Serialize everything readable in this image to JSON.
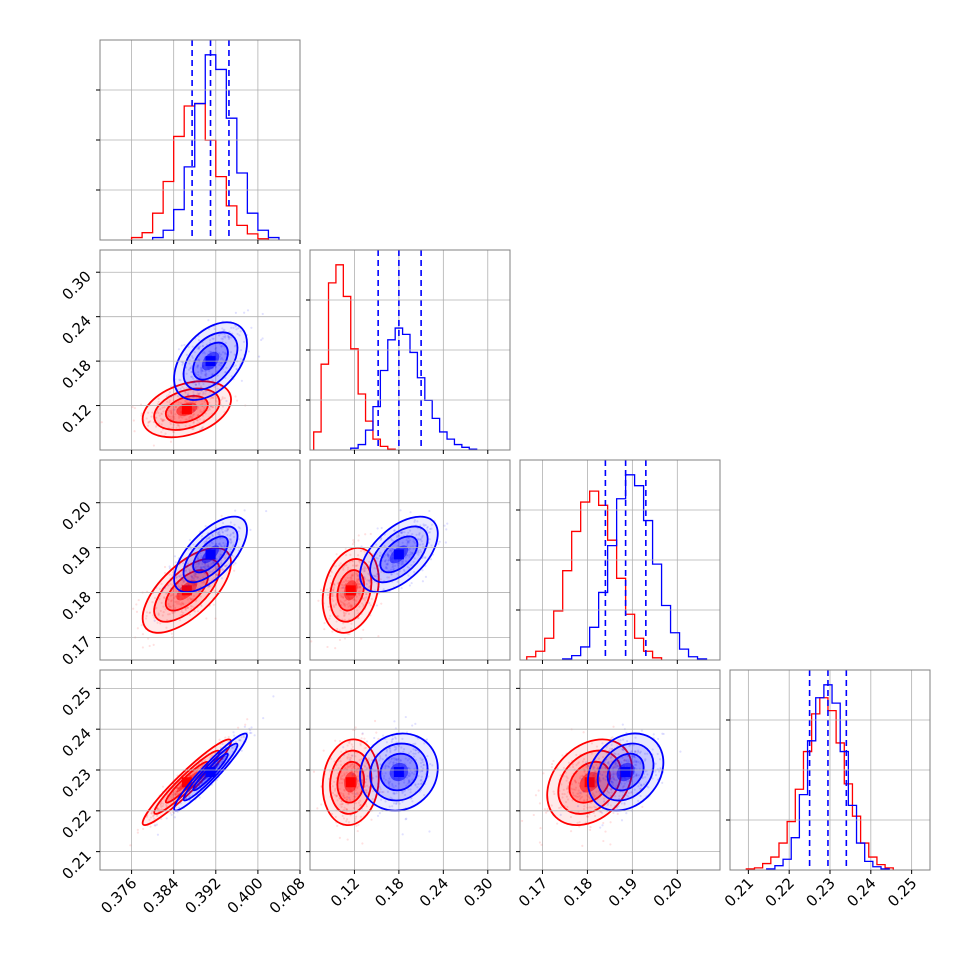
{
  "colors": {
    "red": "#ff0000",
    "blue": "#0000ff",
    "grid": "#b0b0b0",
    "frame": "#808080"
  },
  "chart_data": {
    "type": "corner",
    "grid": true,
    "parameters": [
      {
        "range": [
          0.37,
          0.408
        ],
        "ticks": [
          0.376,
          0.384,
          0.392,
          0.4,
          0.408
        ],
        "tick_labels": [
          "0.376",
          "0.384",
          "0.392",
          "0.400",
          "0.408"
        ]
      },
      {
        "range": [
          0.06,
          0.33
        ],
        "ticks": [
          0.12,
          0.18,
          0.24,
          0.3
        ],
        "tick_labels": [
          "0.12",
          "0.18",
          "0.24",
          "0.30"
        ]
      },
      {
        "range": [
          0.165,
          0.2095
        ],
        "ticks": [
          0.17,
          0.18,
          0.19,
          0.2
        ],
        "tick_labels": [
          "0.17",
          "0.18",
          "0.19",
          "0.20"
        ]
      },
      {
        "range": [
          0.2055,
          0.2545
        ],
        "ticks": [
          0.21,
          0.22,
          0.23,
          0.24,
          0.25
        ],
        "tick_labels": [
          "0.21",
          "0.22",
          "0.23",
          "0.24",
          "0.25"
        ]
      }
    ],
    "series": [
      {
        "color": "red",
        "mean": [
          0.3865,
          0.115,
          0.1805,
          0.227
        ],
        "sd": [
          0.004,
          0.018,
          0.0045,
          0.005
        ],
        "corr": [
          [
            1,
            0.35,
            0.65,
            0.95
          ],
          [
            0.35,
            1,
            0.25,
            0.1
          ],
          [
            0.65,
            0.25,
            1,
            0.3
          ],
          [
            0.95,
            0.1,
            0.3,
            1
          ]
        ],
        "histograms": [
          {
            "edges": [
              0.376,
              0.378,
              0.38,
              0.382,
              0.384,
              0.386,
              0.388,
              0.39,
              0.392,
              0.394,
              0.396,
              0.398,
              0.4,
              0.402
            ],
            "counts": [
              2,
              6,
              22,
              48,
              85,
              110,
              112,
              82,
              52,
              28,
              12,
              5,
              1
            ]
          },
          {
            "edges": [
              0.065,
              0.075,
              0.085,
              0.095,
              0.105,
              0.115,
              0.125,
              0.135,
              0.145,
              0.155,
              0.165,
              0.175
            ],
            "counts": [
              20,
              95,
              185,
              205,
              170,
              112,
              62,
              32,
              12,
              4,
              1
            ]
          },
          {
            "edges": [
              0.1665,
              0.1685,
              0.1705,
              0.1725,
              0.1745,
              0.1765,
              0.1785,
              0.1805,
              0.1825,
              0.1845,
              0.1865,
              0.1885,
              0.1905,
              0.1925,
              0.1945,
              0.1965
            ],
            "counts": [
              3,
              8,
              20,
              45,
              82,
              118,
              145,
              155,
              142,
              110,
              75,
              42,
              20,
              8,
              2
            ]
          },
          {
            "edges": [
              0.2095,
              0.2115,
              0.2135,
              0.2155,
              0.2175,
              0.2195,
              0.2215,
              0.2235,
              0.2255,
              0.2275,
              0.2295,
              0.2315,
              0.2335,
              0.2355,
              0.2375,
              0.2395,
              0.2415,
              0.2435,
              0.2455
            ],
            "counts": [
              1,
              2,
              6,
              12,
              25,
              45,
              75,
              110,
              145,
              160,
              148,
              118,
              80,
              50,
              25,
              12,
              5,
              2
            ]
          }
        ]
      },
      {
        "color": "blue",
        "mean": [
          0.391,
          0.18,
          0.1885,
          0.2295
        ],
        "sd": [
          0.0033,
          0.025,
          0.004,
          0.0045
        ],
        "corr": [
          [
            1,
            0.45,
            0.65,
            0.95
          ],
          [
            0.45,
            1,
            0.55,
            0.1
          ],
          [
            0.65,
            0.55,
            1,
            0.25
          ],
          [
            0.95,
            0.1,
            0.25,
            1
          ]
        ],
        "quantiles": [
          [
            0.3875,
            0.391,
            0.3945
          ],
          [
            0.152,
            0.18,
            0.21
          ],
          [
            0.184,
            0.1885,
            0.193
          ],
          [
            0.225,
            0.2295,
            0.234
          ]
        ],
        "histograms": [
          {
            "edges": [
              0.38,
              0.382,
              0.384,
              0.386,
              0.388,
              0.39,
              0.392,
              0.394,
              0.396,
              0.398,
              0.4,
              0.402,
              0.404
            ],
            "counts": [
              2,
              8,
              25,
              60,
              112,
              152,
              140,
              100,
              55,
              22,
              8,
              2
            ]
          },
          {
            "edges": [
              0.115,
              0.125,
              0.135,
              0.145,
              0.155,
              0.165,
              0.175,
              0.185,
              0.195,
              0.205,
              0.215,
              0.225,
              0.235,
              0.245,
              0.255,
              0.265,
              0.275,
              0.285
            ],
            "counts": [
              2,
              6,
              22,
              48,
              88,
              122,
              135,
              128,
              108,
              80,
              55,
              35,
              20,
              12,
              6,
              3,
              1
            ]
          },
          {
            "edges": [
              0.1745,
              0.1765,
              0.1785,
              0.1805,
              0.1825,
              0.1845,
              0.1865,
              0.1885,
              0.1905,
              0.1925,
              0.1945,
              0.1965,
              0.1985,
              0.2005,
              0.2025,
              0.2045,
              0.2065
            ],
            "counts": [
              1,
              4,
              12,
              30,
              62,
              105,
              148,
              170,
              160,
              128,
              88,
              50,
              25,
              10,
              3,
              1
            ]
          },
          {
            "edges": [
              0.2145,
              0.2165,
              0.2185,
              0.2205,
              0.2225,
              0.2245,
              0.2265,
              0.2285,
              0.2305,
              0.2325,
              0.2345,
              0.2365,
              0.2385,
              0.2405,
              0.2425,
              0.2445
            ],
            "counts": [
              1,
              4,
              10,
              30,
              70,
              120,
              160,
              172,
              155,
              110,
              60,
              25,
              8,
              3,
              1
            ]
          }
        ]
      }
    ]
  }
}
